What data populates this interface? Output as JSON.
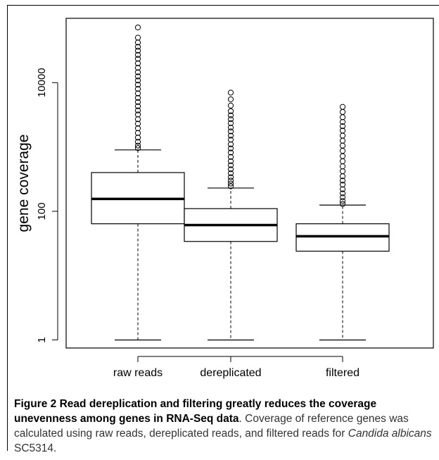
{
  "chart_data": {
    "type": "box",
    "title": "",
    "xlabel": "",
    "ylabel": "gene coverage",
    "yscale": "log",
    "ylim": [
      0.75,
      100000
    ],
    "yticks": [
      1,
      100,
      10000
    ],
    "ytick_labels": [
      "1",
      "100",
      "10000"
    ],
    "categories": [
      "raw reads",
      "dereplicated",
      "filtered"
    ],
    "boxes": [
      {
        "category": "raw reads",
        "min": 1,
        "q1": 64,
        "median": 156,
        "q3": 400,
        "whisker_high": 900,
        "outliers": [
          960,
          1050,
          1200,
          1400,
          1650,
          1950,
          2300,
          2700,
          3200,
          3700,
          4300,
          5000,
          5800,
          6800,
          8000,
          9300,
          10800,
          12500,
          14500,
          17000,
          20000,
          23500,
          27000,
          31500,
          36000,
          42000,
          50000,
          72000
        ]
      },
      {
        "category": "dereplicated",
        "min": 1,
        "q1": 34,
        "median": 61,
        "q3": 110,
        "whisker_high": 230,
        "outliers": [
          245,
          270,
          300,
          340,
          390,
          450,
          520,
          600,
          700,
          820,
          950,
          1100,
          1300,
          1500,
          1750,
          2000,
          2350,
          2700,
          3100,
          3600,
          4400,
          5500,
          7000
        ]
      },
      {
        "category": "filtered",
        "min": 1,
        "q1": 24,
        "median": 41,
        "q3": 64,
        "whisker_high": 125,
        "outliers": [
          130,
          145,
          165,
          190,
          220,
          260,
          300,
          350,
          420,
          500,
          600,
          720,
          870,
          1050,
          1250,
          1500,
          1800,
          2100,
          2450,
          2900,
          3500,
          4200
        ]
      }
    ],
    "colors": {
      "box_fill": "#ffffff",
      "line": "#000000",
      "median": "#000000"
    }
  },
  "caption": {
    "label": "Figure 2",
    "title": "Read dereplication and filtering greatly reduces the coverage unevenness among genes in RNA-Seq data",
    "text_before_species": ". Coverage of reference genes was calculated using raw reads, dereplicated reads, and filtered reads for ",
    "species": "Candida albicans",
    "text_after_species": " SC5314."
  }
}
